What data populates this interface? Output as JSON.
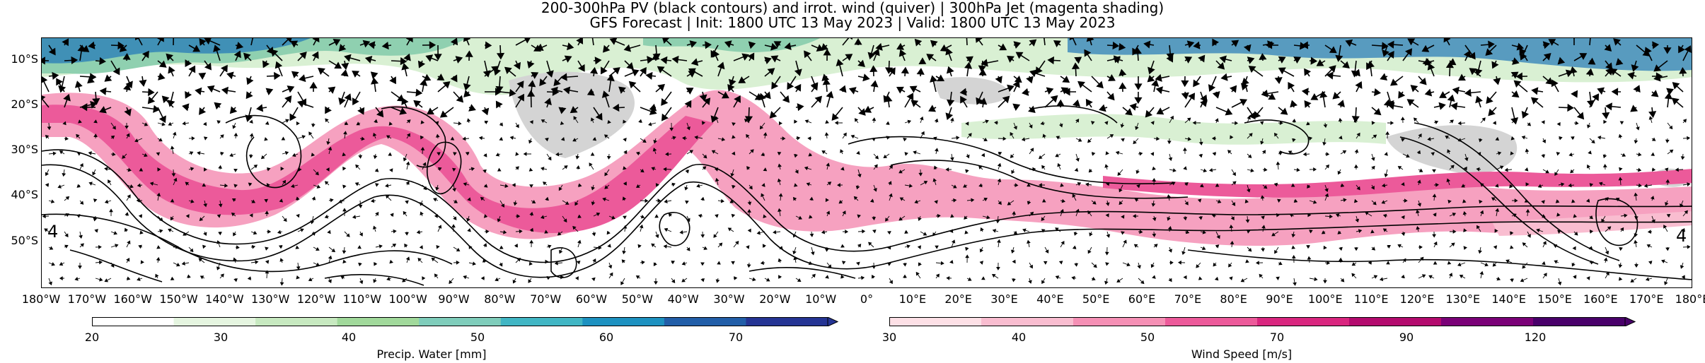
{
  "title": {
    "line1": "200-300hPa PV (black contours) and irrot. wind (quiver) | 300hPa Jet (magenta shading)",
    "line2": "GFS Forecast | Init: 1800 UTC 13 May 2023 | Valid: 1800 UTC 13 May 2023"
  },
  "map": {
    "lat_labels": [
      "10°S",
      "20°S",
      "30°S",
      "40°S",
      "50°S"
    ],
    "lon_labels": [
      "180°W",
      "170°W",
      "160°W",
      "150°W",
      "140°W",
      "130°W",
      "120°W",
      "110°W",
      "100°W",
      "90°W",
      "80°W",
      "70°W",
      "60°W",
      "50°W",
      "40°W",
      "30°W",
      "20°W",
      "10°W",
      "0°",
      "10°E",
      "20°E",
      "30°E",
      "40°E",
      "50°E",
      "60°E",
      "70°E",
      "80°E",
      "90°E",
      "100°E",
      "110°E",
      "120°E",
      "130°E",
      "140°E",
      "150°E",
      "160°E",
      "170°E",
      "180°E"
    ],
    "lat_range": [
      -60,
      -5
    ],
    "lon_range": [
      -180,
      180
    ],
    "contour_labels": [
      "4",
      "4"
    ],
    "colors": {
      "jet": "#e8559a",
      "jet_light": "#f6b3c9",
      "precip_light": "#d9f0d3",
      "precip_mid": "#8fd0b0",
      "precip_dark": "#2c7fb8",
      "land_dry": "#d4d4d4"
    }
  },
  "colorbars": {
    "precip": {
      "ticks": [
        "20",
        "30",
        "40",
        "50",
        "60",
        "70"
      ],
      "title": "Precip. Water [mm]",
      "colors": [
        "#ffffff",
        "#e5f5e0",
        "#c7e9c0",
        "#a1d99b",
        "#7fcdbb",
        "#41b6c4",
        "#1d91c0",
        "#225ea8",
        "#253494"
      ]
    },
    "wind": {
      "ticks": [
        "30",
        "40",
        "50",
        "70",
        "90",
        "120"
      ],
      "title": "Wind Speed [m/s]",
      "colors": [
        "#fde0e6",
        "#f9bdd0",
        "#f590b5",
        "#ec5a9a",
        "#d9267f",
        "#b30b6e",
        "#7a0177",
        "#49006a"
      ]
    }
  }
}
